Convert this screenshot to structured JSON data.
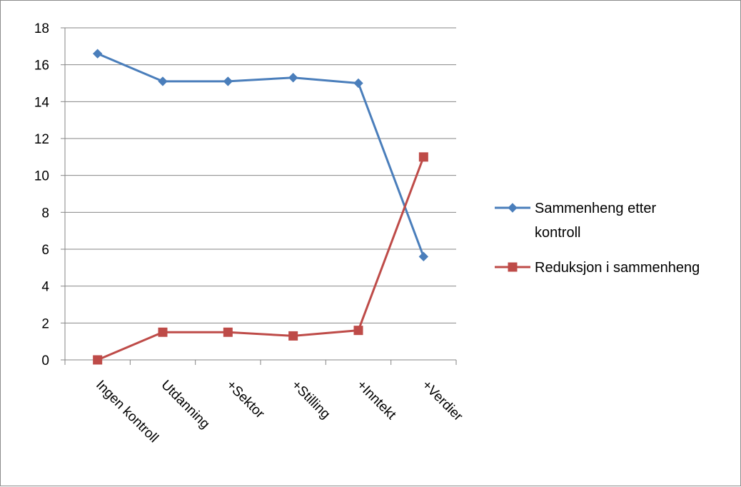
{
  "chart_data": {
    "type": "line",
    "categories": [
      "Ingen kontroll",
      "Utdanning",
      "+Sektor",
      "+Stilling",
      "+Inntekt",
      "+Verdier"
    ],
    "series": [
      {
        "name": "Sammenheng etter kontroll",
        "name_lines": [
          "Sammenheng etter",
          "kontroll"
        ],
        "values": [
          16.6,
          15.1,
          15.1,
          15.3,
          15.0,
          5.6
        ],
        "color": "#4a7ebb",
        "marker": "diamond"
      },
      {
        "name": "Reduksjon i sammenheng",
        "name_lines": [
          "Reduksjon i sammenheng"
        ],
        "values": [
          0.0,
          1.5,
          1.5,
          1.3,
          1.6,
          11.0
        ],
        "color": "#be4b48",
        "marker": "square"
      }
    ],
    "y_ticks": [
      "0",
      "2",
      "4",
      "6",
      "8",
      "10",
      "12",
      "14",
      "16",
      "18"
    ],
    "ylim": [
      0,
      18
    ],
    "grid": true,
    "legend": "right"
  }
}
